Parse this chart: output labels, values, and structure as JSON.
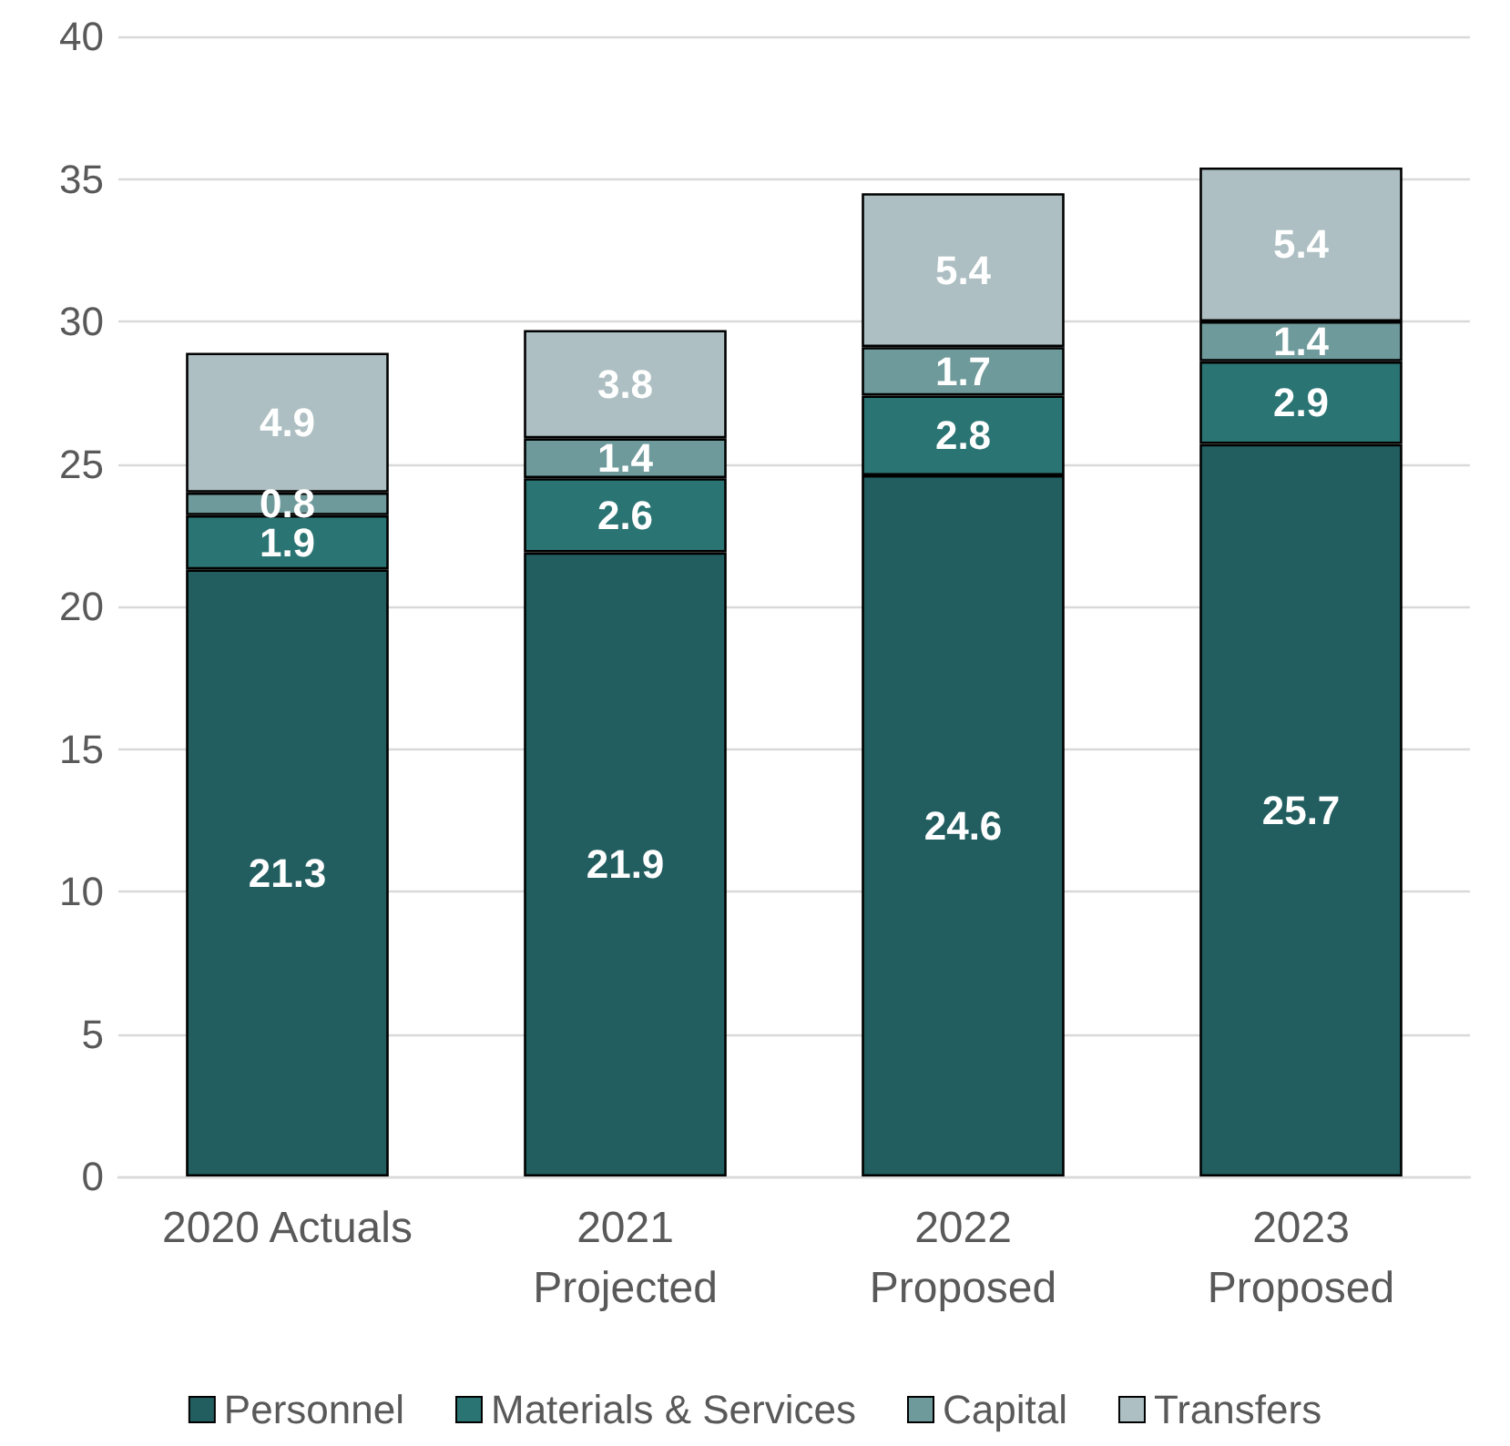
{
  "chart_data": {
    "type": "bar",
    "stacked": true,
    "categories": [
      "2020 Actuals",
      "2021\nProjected",
      "2022\nProposed",
      "2023\nProposed"
    ],
    "series": [
      {
        "name": "Personnel",
        "color": "#225e60",
        "values": [
          21.3,
          21.9,
          24.6,
          25.7
        ]
      },
      {
        "name": "Materials & Services",
        "color": "#2a7473",
        "values": [
          1.9,
          2.6,
          2.8,
          2.9
        ]
      },
      {
        "name": "Capital",
        "color": "#6f9a9b",
        "values": [
          0.8,
          1.4,
          1.7,
          1.4
        ]
      },
      {
        "name": "Transfers",
        "color": "#adbfc2",
        "values": [
          4.9,
          3.8,
          5.4,
          5.4
        ]
      }
    ],
    "ylim": [
      0,
      40
    ],
    "yticks": [
      0,
      5,
      10,
      15,
      20,
      25,
      30,
      35,
      40
    ],
    "grid": "y",
    "legend": "bottom",
    "data_labels": true
  }
}
